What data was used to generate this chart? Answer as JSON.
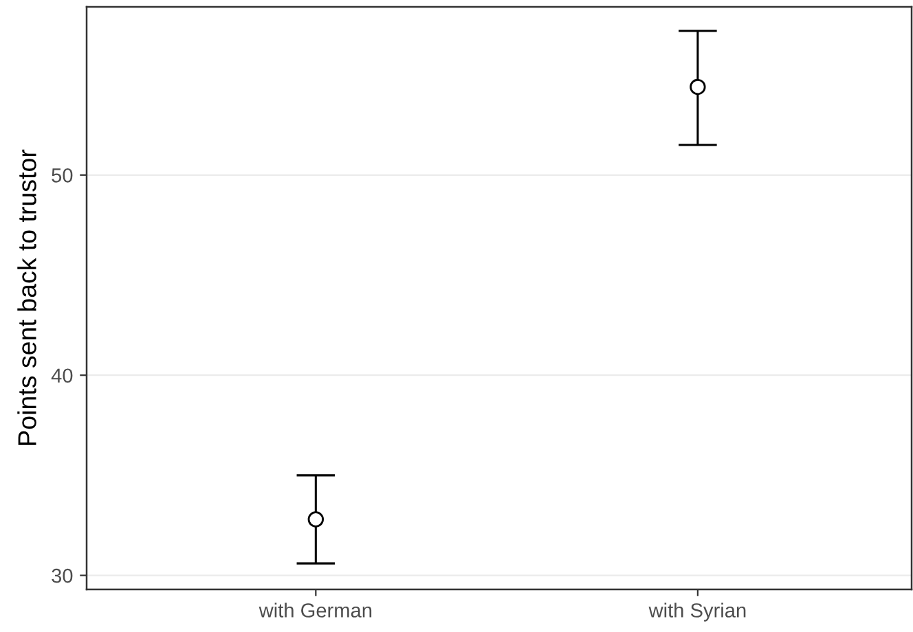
{
  "chart_data": {
    "type": "scatter",
    "ylabel": "Points sent back to trustor",
    "categories": [
      "with German",
      "with Syrian"
    ],
    "values": [
      32.8,
      54.4
    ],
    "errors": [
      [
        30.6,
        35.0
      ],
      [
        51.5,
        57.2
      ]
    ],
    "color": "#000000",
    "marker": "circle",
    "ylim": [
      29.3,
      58.4
    ],
    "yticks": [
      30,
      40,
      50
    ],
    "grid": "y"
  }
}
